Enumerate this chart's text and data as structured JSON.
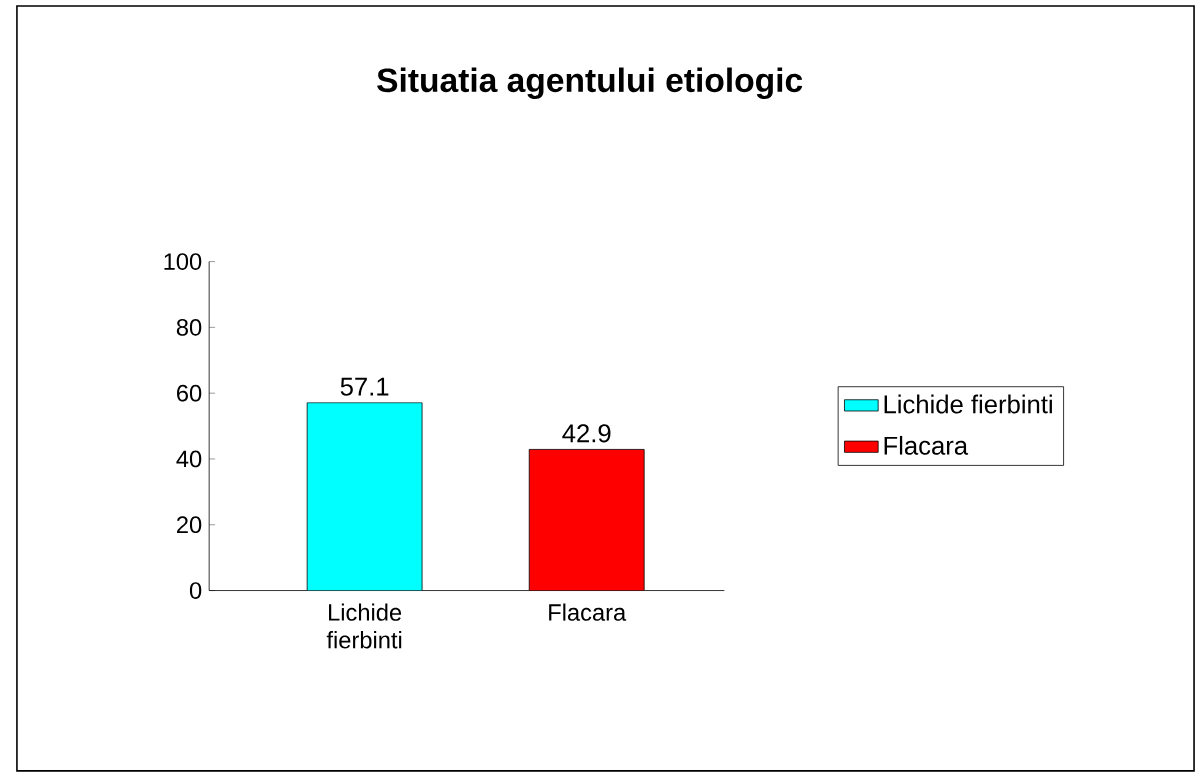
{
  "chart_data": {
    "type": "bar",
    "title": "Situatia agentului etiologic",
    "categories": [
      "Lichide fierbinti",
      "Flacara"
    ],
    "series": [
      {
        "name": "Lichide fierbinti",
        "color": "#00ffff",
        "values": [
          57.1,
          null
        ]
      },
      {
        "name": "Flacara",
        "color": "#ff0000",
        "values": [
          null,
          42.9
        ]
      }
    ],
    "ylim": [
      0,
      100
    ],
    "yticks": [
      0,
      20,
      40,
      60,
      80,
      100
    ],
    "data_labels": true,
    "legend": "right",
    "grid": false
  }
}
